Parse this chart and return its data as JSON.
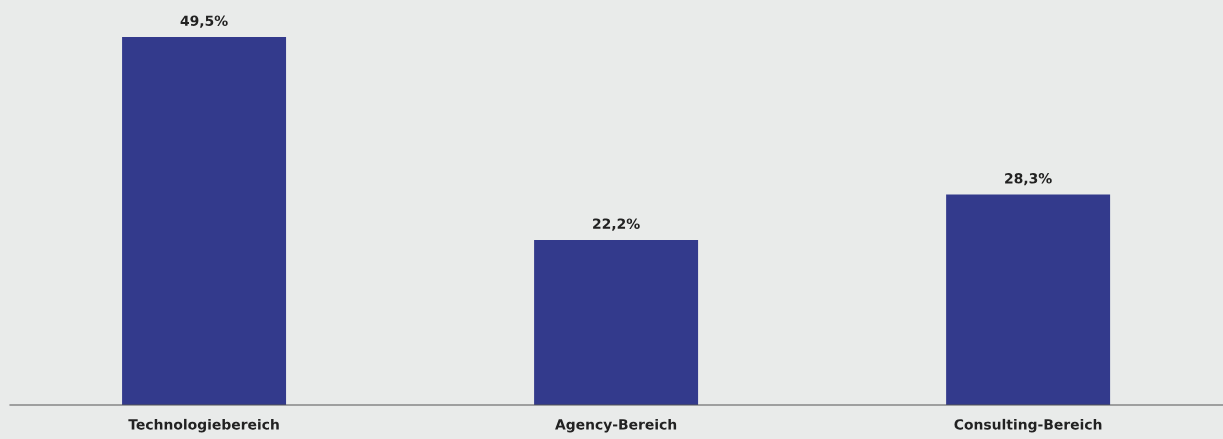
{
  "chart_data": {
    "type": "bar",
    "categories": [
      "Technologiebereich",
      "Agency-Bereich",
      "Consulting-Bereich"
    ],
    "values": [
      49.5,
      22.2,
      28.3
    ],
    "value_labels": [
      "49,5%",
      "22,2%",
      "28,3%"
    ],
    "color": "#333a8c",
    "grid": false,
    "legend": false
  }
}
